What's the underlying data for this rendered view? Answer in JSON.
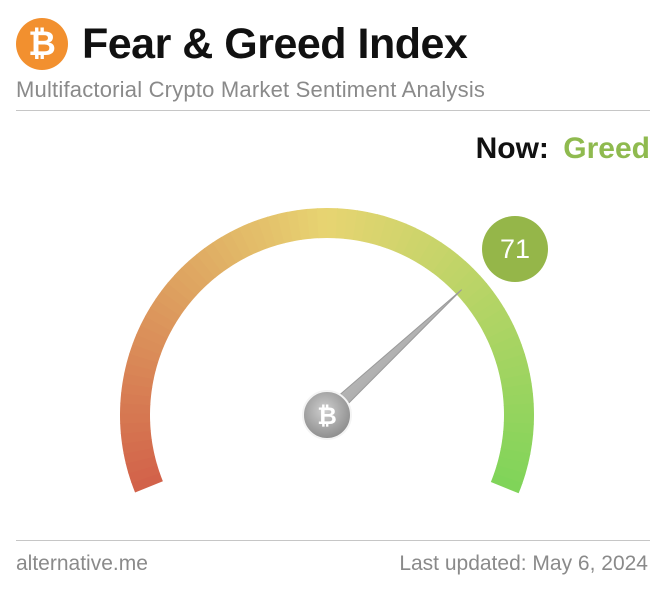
{
  "header": {
    "logo_glyph": "₿",
    "logo_icon": "bitcoin-icon",
    "title": "Fear & Greed Index",
    "subtitle": "Multifactorial Crypto Market Sentiment Analysis"
  },
  "status": {
    "now_label": "Now:",
    "now_value": "Greed",
    "now_color": "#8fba4f"
  },
  "gauge": {
    "value": 71,
    "min": 0,
    "max": 100,
    "value_display": "71",
    "bubble_color": "#95b649",
    "hub_glyph": "₿",
    "hub_icon": "bitcoin-icon",
    "colors": {
      "fear": "#d2614a",
      "neutral": "#e7d471",
      "greed": "#7fd459"
    }
  },
  "footer": {
    "source": "alternative.me",
    "updated": "Last updated: May 6, 2024"
  }
}
